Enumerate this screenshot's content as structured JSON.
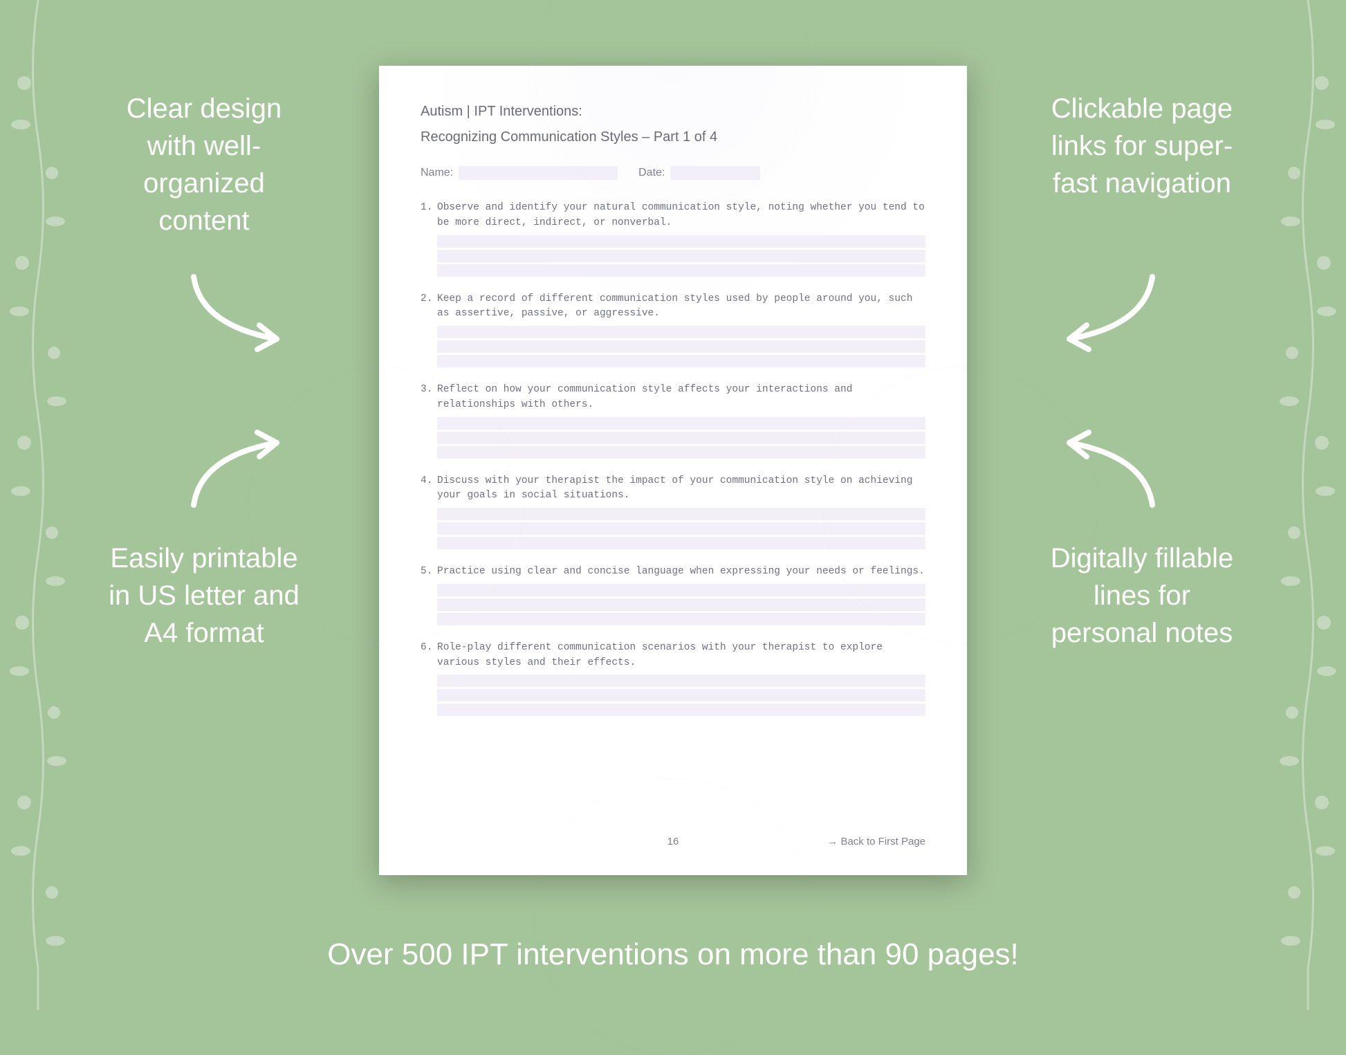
{
  "background_color": "#a4c49a",
  "callouts": {
    "top_left": "Clear design with well-organized content",
    "top_right": "Clickable page links for super-fast navigation",
    "bottom_left": "Easily printable in US letter and A4 format",
    "bottom_right": "Digitally fillable lines for personal notes"
  },
  "bottom_promo": "Over 500 IPT interventions on more than 90 pages!",
  "document": {
    "header_line1": "Autism | IPT Interventions:",
    "header_line2": "Recognizing Communication Styles – Part 1 of 4",
    "name_label": "Name:",
    "date_label": "Date:",
    "page_number": "16",
    "back_link": "→ Back to First Page",
    "fill_color": "#f2eff8",
    "text_color": "#707080",
    "questions": [
      {
        "num": "1.",
        "text": "Observe and identify your natural communication style, noting whether you tend to be more direct, indirect, or nonverbal.",
        "lines": 3
      },
      {
        "num": "2.",
        "text": "Keep a record of different communication styles used by people around you, such as assertive, passive, or aggressive.",
        "lines": 3
      },
      {
        "num": "3.",
        "text": "Reflect on how your communication style affects your interactions and relationships with others.",
        "lines": 3
      },
      {
        "num": "4.",
        "text": "Discuss with your therapist the impact of your communication style on achieving your goals in social situations.",
        "lines": 3
      },
      {
        "num": "5.",
        "text": "Practice using clear and concise language when expressing your needs or feelings.",
        "lines": 3
      },
      {
        "num": "6.",
        "text": "Role-play different communication scenarios with your therapist to explore various styles and their effects.",
        "lines": 3
      }
    ]
  },
  "style": {
    "callout_color": "#ffffff",
    "callout_fontsize": 40,
    "page_shadow": "0 10px 40px rgba(0,0,0,0.25)",
    "arrow_stroke": "#ffffff",
    "arrow_stroke_width": 8
  }
}
